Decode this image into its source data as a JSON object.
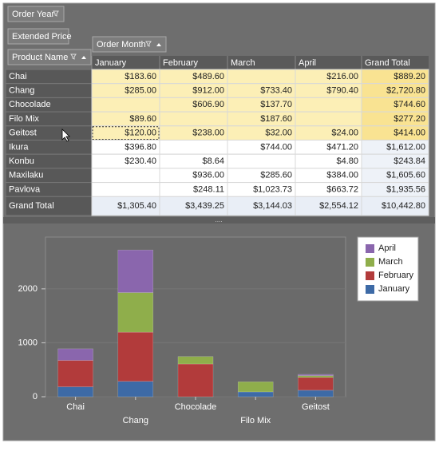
{
  "pivot": {
    "fields": {
      "filter": [
        "Order Year"
      ],
      "data": "Extended Price",
      "row": "Product Name",
      "column": "Order Month"
    },
    "columns": [
      "January",
      "February",
      "March",
      "April",
      "Grand Total"
    ],
    "rows": [
      {
        "label": "Chai",
        "cells": [
          "$183.60",
          "$489.60",
          null,
          "$216.00",
          "$889.20"
        ]
      },
      {
        "label": "Chang",
        "cells": [
          "$285.00",
          "$912.00",
          "$733.40",
          "$790.40",
          "$2,720.80"
        ]
      },
      {
        "label": "Chocolade",
        "cells": [
          null,
          "$606.90",
          "$137.70",
          null,
          "$744.60"
        ]
      },
      {
        "label": "Filo Mix",
        "cells": [
          "$89.60",
          null,
          "$187.60",
          null,
          "$277.20"
        ]
      },
      {
        "label": "Geitost",
        "cells": [
          "$120.00",
          "$238.00",
          "$32.00",
          "$24.00",
          "$414.00"
        ]
      },
      {
        "label": "Ikura",
        "cells": [
          "$396.80",
          null,
          "$744.00",
          "$471.20",
          "$1,612.00"
        ]
      },
      {
        "label": "Konbu",
        "cells": [
          "$230.40",
          "$8.64",
          null,
          "$4.80",
          "$243.84"
        ]
      },
      {
        "label": "Maxilaku",
        "cells": [
          null,
          "$936.00",
          "$285.60",
          "$384.00",
          "$1,605.60"
        ]
      },
      {
        "label": "Pavlova",
        "cells": [
          null,
          "$248.11",
          "$1,023.73",
          "$663.72",
          "$1,935.56"
        ]
      }
    ],
    "total": {
      "label": "Grand Total",
      "cells": [
        "$1,305.40",
        "$3,439.25",
        "$3,144.03",
        "$2,554.12",
        "$10,442.80"
      ]
    },
    "selected_rows": 5
  },
  "chart_data": {
    "type": "stacked_bar",
    "categories": [
      "Chai",
      "Chang",
      "Chocolade",
      "Filo Mix",
      "Geitost"
    ],
    "series": [
      {
        "name": "January",
        "color": "#3d6aa6",
        "values": [
          183.6,
          285,
          null,
          89.6,
          120
        ]
      },
      {
        "name": "February",
        "color": "#b23b3b",
        "values": [
          489.6,
          912,
          606.9,
          null,
          238
        ]
      },
      {
        "name": "March",
        "color": "#8fae4b",
        "values": [
          null,
          733.4,
          137.7,
          187.6,
          32
        ]
      },
      {
        "name": "April",
        "color": "#8a66ad",
        "values": [
          216,
          790.4,
          null,
          null,
          24
        ]
      }
    ],
    "ylim": [
      0,
      2960
    ],
    "yticks": [
      0,
      1000,
      2000
    ],
    "grid": true,
    "legend": "right"
  }
}
